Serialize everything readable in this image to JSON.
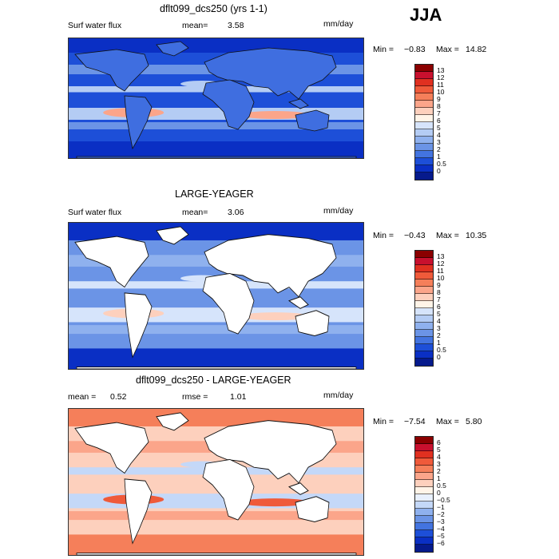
{
  "season": "JJA",
  "panels": [
    {
      "title": "dflt099_dcs250 (yrs 1-1)",
      "field": "Surf water flux",
      "stat1_label": "mean=",
      "stat1_value": "3.58",
      "stat2_label": "",
      "stat2_value": "",
      "units": "mm/day",
      "range": {
        "min_label": "Min =",
        "min": "−0.83",
        "max_label": "Max =",
        "max": "14.82"
      },
      "land_masked": false,
      "colorbar": {
        "labels": [
          "13",
          "12",
          "11",
          "10",
          "9",
          "8",
          "7",
          "6",
          "5",
          "4",
          "3",
          "2",
          "1",
          "0.5",
          "0"
        ],
        "colors": [
          "#8b0000",
          "#c8102e",
          "#e03020",
          "#ef5a3a",
          "#f57f5a",
          "#fba58a",
          "#fdd0bd",
          "#fff4e8",
          "#d6e4fb",
          "#b4ccf4",
          "#8fb1ee",
          "#6b94e6",
          "#4374e0",
          "#1d4fd8",
          "#0a2fc4",
          "#061a8c"
        ]
      },
      "map_colors": {
        "ocean": "#1d4fd8",
        "deep": "#0a2fc4",
        "mid": "#6b94e6",
        "light": "#b4ccf4",
        "warm": "#fba58a",
        "land": "#3f6ee0"
      }
    },
    {
      "title": "LARGE-YEAGER",
      "field": "Surf water flux",
      "stat1_label": "mean=",
      "stat1_value": "3.06",
      "stat2_label": "",
      "stat2_value": "",
      "units": "mm/day",
      "range": {
        "min_label": "Min =",
        "min": "−0.43",
        "max_label": "Max =",
        "max": "10.35"
      },
      "land_masked": true,
      "colorbar": {
        "labels": [
          "13",
          "12",
          "11",
          "10",
          "9",
          "8",
          "7",
          "6",
          "5",
          "4",
          "3",
          "2",
          "1",
          "0.5",
          "0"
        ],
        "colors": [
          "#8b0000",
          "#c8102e",
          "#e03020",
          "#ef5a3a",
          "#f57f5a",
          "#fba58a",
          "#fdd0bd",
          "#fff4e8",
          "#d6e4fb",
          "#b4ccf4",
          "#8fb1ee",
          "#6b94e6",
          "#4374e0",
          "#1d4fd8",
          "#0a2fc4",
          "#061a8c"
        ]
      },
      "map_colors": {
        "ocean": "#6b94e6",
        "deep": "#0a2fc4",
        "mid": "#8fb1ee",
        "light": "#d6e4fb",
        "warm": "#fdd0bd",
        "land": "#ffffff"
      }
    },
    {
      "title": "dflt099_dcs250 - LARGE-YEAGER",
      "field": "",
      "stat1_label": "mean =",
      "stat1_value": "0.52",
      "stat2_label": "rmse =",
      "stat2_value": "1.01",
      "units": "mm/day",
      "range": {
        "min_label": "Min =",
        "min": "−7.54",
        "max_label": "Max =",
        "max": "5.80"
      },
      "land_masked": true,
      "colorbar": {
        "labels": [
          "6",
          "5",
          "4",
          "3",
          "2",
          "1",
          "0.5",
          "0",
          "−0.5",
          "−1",
          "−2",
          "−3",
          "−4",
          "−5",
          "−6"
        ],
        "colors": [
          "#8b0000",
          "#c8102e",
          "#e03020",
          "#ef5a3a",
          "#f57f5a",
          "#fba58a",
          "#fdd0bd",
          "#fff4e8",
          "#e8f0fd",
          "#c4d8f8",
          "#8fb1ee",
          "#6b94e6",
          "#4374e0",
          "#1d4fd8",
          "#0a2fc4",
          "#061a8c"
        ]
      },
      "map_colors": {
        "ocean": "#fdd0bd",
        "deep": "#f57f5a",
        "mid": "#fba58a",
        "light": "#c4d8f8",
        "warm": "#ef5a3a",
        "land": "#ffffff"
      }
    }
  ]
}
